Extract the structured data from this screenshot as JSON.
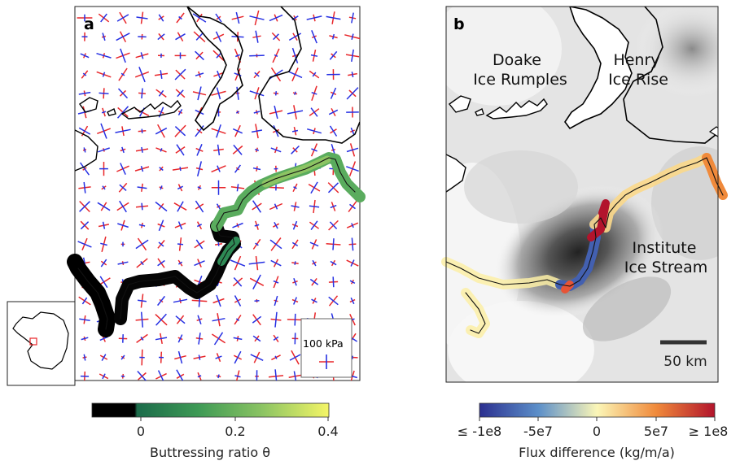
{
  "panel_a": {
    "letter": "a",
    "scale_label": "100 kPa",
    "colorbar": {
      "ticks": [
        "0",
        "0.2",
        "0.4"
      ],
      "label": "Buttressing ratio θ",
      "colors": [
        "#000000",
        "#1b6b4a",
        "#3e9a55",
        "#8cc463",
        "#f4f566"
      ]
    },
    "stress_colors": {
      "tensile": "#e8262a",
      "compressive": "#2630e3"
    }
  },
  "panel_b": {
    "letter": "b",
    "labels": {
      "doake_1": "Doake",
      "doake_2": "Ice Rumples",
      "henry_1": "Henry",
      "henry_2": "Ice Rise",
      "institute_1": "Institute",
      "institute_2": "Ice Stream"
    },
    "scalebar": "50 km",
    "colorbar": {
      "ticks": [
        "≤ -1e8",
        "-5e7",
        "0",
        "5e7",
        "≥ 1e8"
      ],
      "label": "Flux difference (kg/m/a)",
      "colors": [
        "#2b2f8f",
        "#5c8fc9",
        "#fbf6b7",
        "#f08a3b",
        "#b2142c"
      ]
    }
  }
}
